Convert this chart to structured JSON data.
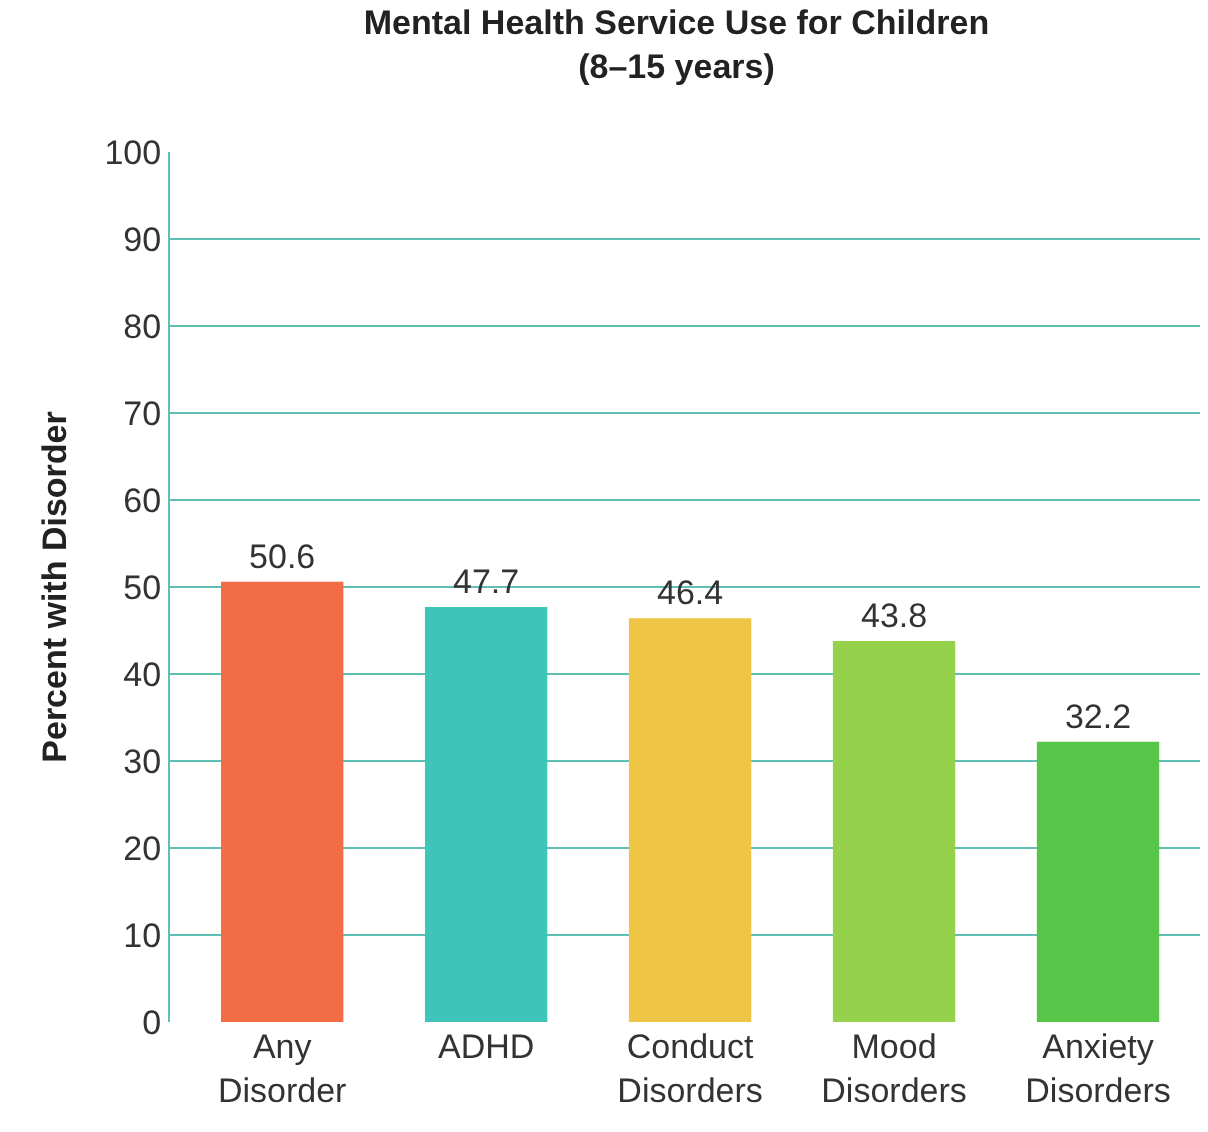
{
  "chart_data": {
    "type": "bar",
    "title": "Mental Health Service Use for Children\n(8–15 years)",
    "ylabel": "Percent with Disorder",
    "categories": [
      "Any Disorder",
      "ADHD",
      "Conduct Disorders",
      "Mood Disorders",
      "Anxiety Disorders"
    ],
    "values": [
      50.6,
      47.7,
      46.4,
      43.8,
      32.2
    ],
    "colors": [
      "#f26d45",
      "#3ec4b9",
      "#efc545",
      "#96d14b",
      "#57c547"
    ],
    "ylim": [
      0,
      100
    ],
    "yticks": [
      0,
      10,
      20,
      30,
      40,
      50,
      60,
      70,
      80,
      90,
      100
    ],
    "grid": "y",
    "data_labels": true,
    "legend": false
  }
}
